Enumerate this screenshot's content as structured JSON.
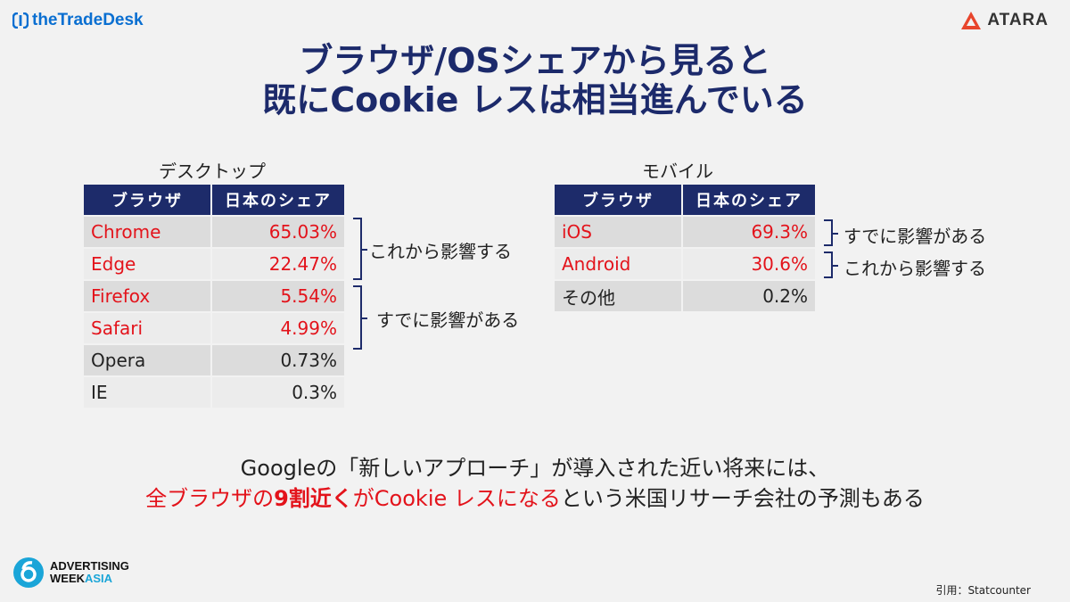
{
  "logos": {
    "ttd": "theTradeDesk",
    "atara": "ATARA",
    "aw_line1": "ADVERTISING",
    "aw_line2": "WEEK",
    "aw_line3": "ASIA"
  },
  "title": {
    "line1": "ブラウザ/OSシェアから見ると",
    "line2": "既にCookie レスは相当進んでいる"
  },
  "desktop": {
    "label": "デスクトップ",
    "headers": [
      "ブラウザ",
      "日本のシェア"
    ],
    "rows": [
      {
        "browser": "Chrome",
        "share": "65.03%",
        "highlight": true
      },
      {
        "browser": "Edge",
        "share": "22.47%",
        "highlight": true
      },
      {
        "browser": "Firefox",
        "share": "5.54%",
        "highlight": true
      },
      {
        "browser": "Safari",
        "share": "4.99%",
        "highlight": true
      },
      {
        "browser": "Opera",
        "share": "0.73%",
        "highlight": false
      },
      {
        "browser": "IE",
        "share": "0.3%",
        "highlight": false
      }
    ],
    "brace_future": "これから影響する",
    "brace_now": "すでに影響がある"
  },
  "mobile": {
    "label": "モバイル",
    "headers": [
      "ブラウザ",
      "日本のシェア"
    ],
    "rows": [
      {
        "browser": "iOS",
        "share": "69.3%",
        "highlight": true
      },
      {
        "browser": "Android",
        "share": "30.6%",
        "highlight": true
      },
      {
        "browser": "その他",
        "share": "0.2%",
        "highlight": false
      }
    ],
    "brace_now": "すでに影響がある",
    "brace_future": "これから影響する"
  },
  "bottom": {
    "line1": "Googleの「新しいアプローチ」が導入された近い将来には、",
    "line2_a": "全ブラウザの",
    "line2_b": "9割近く",
    "line2_c": "がCookie レスになる",
    "line2_d": "という米国リサーチ会社の予測もある"
  },
  "citation": "引用：Statcounter",
  "colors": {
    "navy": "#1d2b6a",
    "title": "#1c2a6b",
    "red": "#e3131b",
    "ttd_blue": "#0a6fd1",
    "atara_red": "#e8452c",
    "aw_blue": "#1aa5d8"
  }
}
